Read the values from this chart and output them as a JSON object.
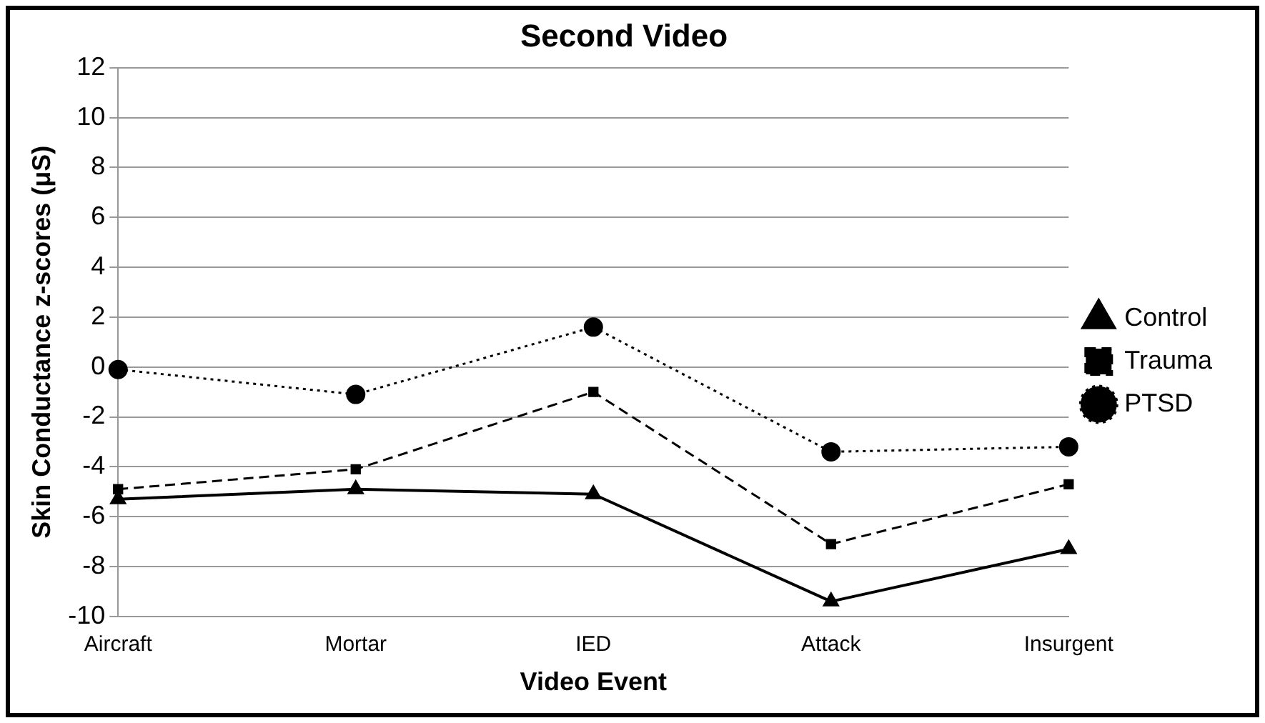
{
  "chart_data": {
    "type": "line",
    "title": "Second Video",
    "xlabel": "Video Event",
    "ylabel": "Skin Conductance z-scores (μS)",
    "categories": [
      "Aircraft",
      "Mortar",
      "IED",
      "Attack",
      "Insurgent"
    ],
    "series": [
      {
        "name": "Control",
        "color": "#000000",
        "marker": "triangle",
        "line_style": "solid",
        "values": [
          -5.3,
          -4.9,
          -5.1,
          -9.4,
          -7.3
        ]
      },
      {
        "name": "Trauma",
        "color": "#000000",
        "marker": "square",
        "line_style": "dashed",
        "values": [
          -4.9,
          -4.1,
          -1.0,
          -7.1,
          -4.7
        ]
      },
      {
        "name": "PTSD",
        "color": "#000000",
        "marker": "circle",
        "line_style": "dotted",
        "values": [
          -0.1,
          -1.1,
          1.6,
          -3.4,
          -3.2
        ]
      }
    ],
    "ylim": [
      -10,
      12
    ],
    "yticks": [
      -10,
      -8,
      -6,
      -4,
      -2,
      0,
      2,
      4,
      6,
      8,
      10,
      12
    ],
    "grid": "y",
    "legend": "right"
  }
}
